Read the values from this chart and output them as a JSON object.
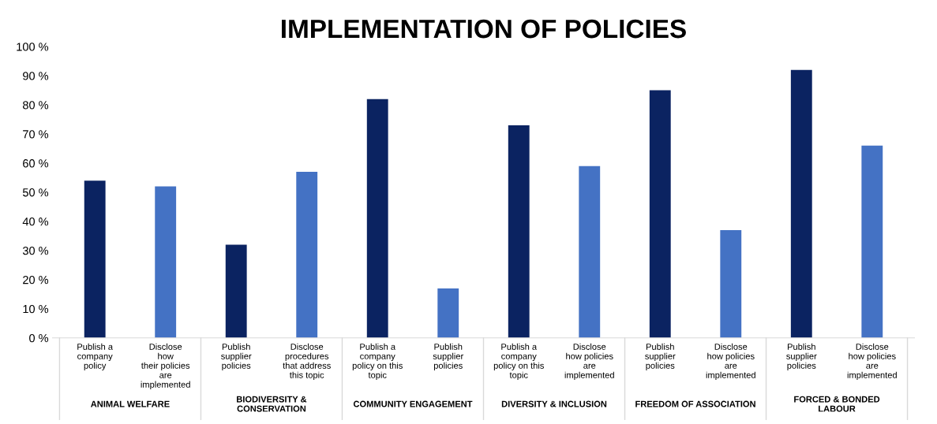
{
  "chart_data": {
    "type": "bar",
    "title": "IMPLEMENTATION OF POLICIES",
    "categories": [
      "Publish a\ncompany\npolicy",
      "Disclose\nhow\ntheir policies\nare\nimplemented",
      "Publish\nsupplier\npolicies",
      "Disclose\nprocedures\nthat address\nthis topic",
      "Publish a\ncompany\npolicy on this\ntopic",
      "Publish\nsupplier\npolicies",
      "Publish a\ncompany\npolicy on this\ntopic",
      "Disclose\nhow policies\nare\nimplemented",
      "Publish\nsupplier\npolicies",
      "Disclose\nhow policies\nare\nimplemented",
      "Publish\nsupplier\npolicies",
      "Disclose\nhow policies\nare\nimplemented"
    ],
    "values": [
      54,
      52,
      32,
      57,
      82,
      17,
      73,
      59,
      85,
      37,
      92,
      66
    ],
    "colors": [
      "#0b2361",
      "#4472c4",
      "#0b2361",
      "#4472c4",
      "#0b2361",
      "#4472c4",
      "#0b2361",
      "#4472c4",
      "#0b2361",
      "#4472c4",
      "#0b2361",
      "#4472c4"
    ],
    "ylim": [
      0,
      100
    ],
    "yticks": [
      {
        "value": 0,
        "label": "0 %"
      },
      {
        "value": 10,
        "label": "10 %"
      },
      {
        "value": 20,
        "label": "20 %"
      },
      {
        "value": 30,
        "label": "30 %"
      },
      {
        "value": 40,
        "label": "40 %"
      },
      {
        "value": 50,
        "label": "50 %"
      },
      {
        "value": 60,
        "label": "60 %"
      },
      {
        "value": 70,
        "label": "70 %"
      },
      {
        "value": 80,
        "label": "80 %"
      },
      {
        "value": 90,
        "label": "90 %"
      },
      {
        "value": 100,
        "label": "100 %"
      }
    ],
    "grid": false,
    "annotations": [
      "ANIMAL WELFARE",
      "BIODIVERSITY &\nCONSERVATION",
      "COMMUNITY ENGAGEMENT",
      "DIVERSITY & INCLUSION",
      "FREEDOM OF ASSOCIATION",
      "FORCED & BONDED\nLABOUR"
    ]
  }
}
